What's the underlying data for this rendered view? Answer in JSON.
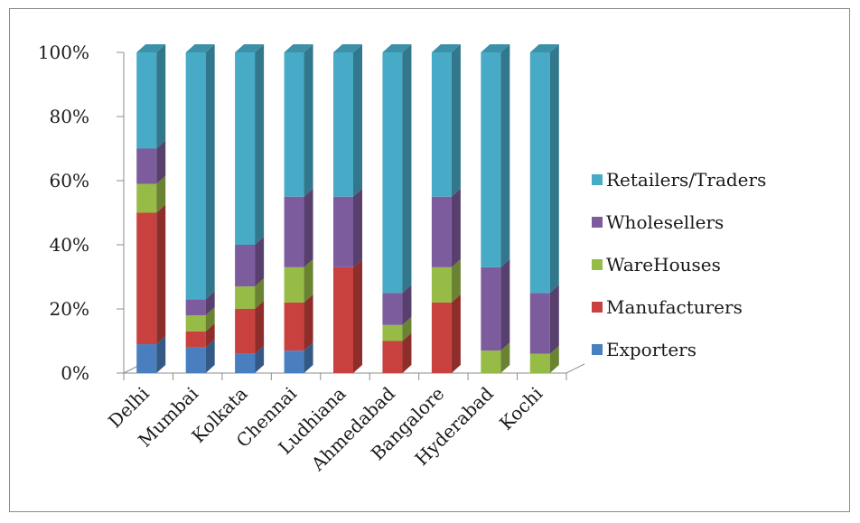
{
  "chart_data": {
    "type": "bar",
    "stacked": true,
    "percent_stacked": true,
    "three_d": true,
    "categories": [
      "Delhi",
      "Mumbai",
      "Kolkata",
      "Chennai",
      "Ludhiana",
      "Ahmedabad",
      "Bangalore",
      "Hyderabad",
      "Kochi"
    ],
    "ylim": [
      0,
      100
    ],
    "yticks": [
      "0%",
      "20%",
      "40%",
      "60%",
      "80%",
      "100%"
    ],
    "ytick_values": [
      0,
      20,
      40,
      60,
      80,
      100
    ],
    "legend_position": "right",
    "series": [
      {
        "name": "Exporters",
        "color": "#4a7fbf",
        "values": [
          9,
          8,
          6,
          7,
          0,
          0,
          0,
          0,
          0
        ]
      },
      {
        "name": "Manufacturers",
        "color": "#c9413e",
        "values": [
          41,
          5,
          14,
          15,
          33,
          10,
          22,
          0,
          0
        ]
      },
      {
        "name": "WareHouses",
        "color": "#97bb47",
        "values": [
          9,
          5,
          7,
          11,
          0,
          5,
          11,
          7,
          6
        ]
      },
      {
        "name": "Wholesellers",
        "color": "#7d5c9d",
        "values": [
          11,
          5,
          13,
          22,
          22,
          10,
          22,
          26,
          19
        ]
      },
      {
        "name": "Retailers/Traders",
        "color": "#47aac6",
        "values": [
          30,
          77,
          60,
          45,
          45,
          75,
          45,
          67,
          75
        ]
      }
    ]
  }
}
